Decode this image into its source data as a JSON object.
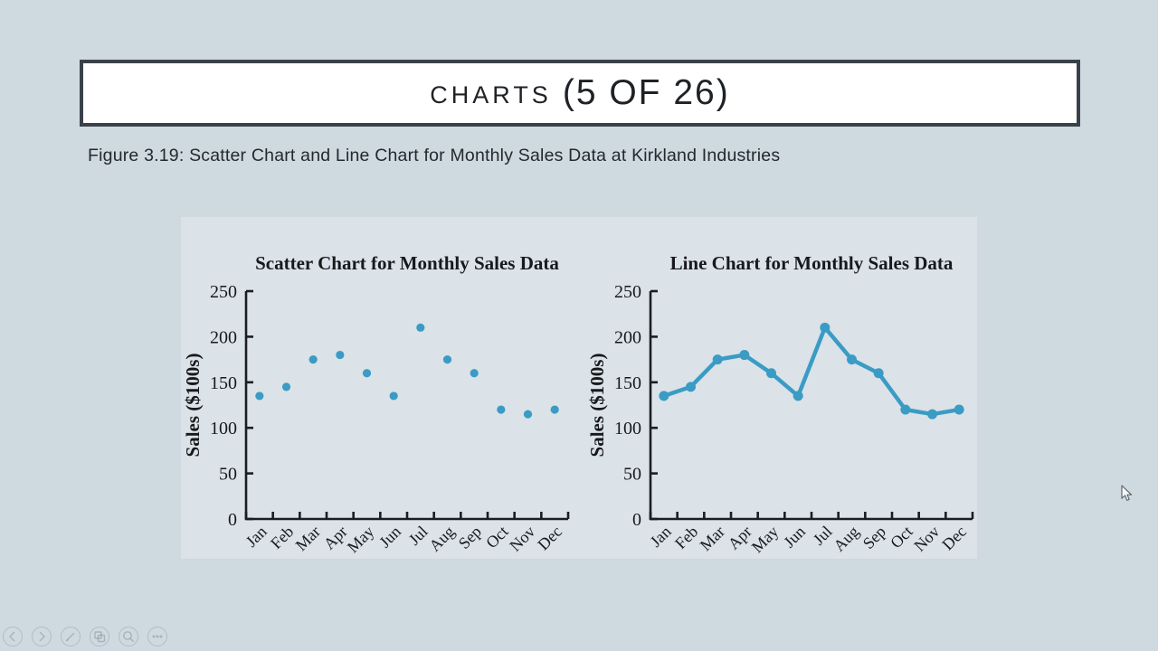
{
  "slide": {
    "title_caps": "CHARTS",
    "title_counter": "(5 OF 26)",
    "caption": "Figure 3.19: Scatter Chart and Line Chart for Monthly Sales Data at Kirkland Industries"
  },
  "colors": {
    "slide_bg": "#cfd9e0",
    "panel_bg": "#dbe2e8",
    "accent": "#3a9cc4",
    "frame": "#3a4149",
    "axis": "#1b1d20"
  },
  "toolbar": {
    "items": [
      {
        "name": "previous-slide",
        "icon": "chevron-left-icon"
      },
      {
        "name": "next-slide",
        "icon": "chevron-right-icon"
      },
      {
        "name": "pen-tools",
        "icon": "pen-icon"
      },
      {
        "name": "see-all-slides",
        "icon": "slides-grid-icon"
      },
      {
        "name": "zoom-into-slide",
        "icon": "magnifier-icon"
      },
      {
        "name": "more-options",
        "icon": "ellipsis-icon"
      }
    ]
  },
  "icons": {
    "mouse_pointer": "arrow-pointer-icon"
  },
  "chart_data": [
    {
      "type": "scatter",
      "title": "Scatter Chart for Monthly Sales Data",
      "ylabel": "Sales ($100s)",
      "xlabel": "",
      "categories": [
        "Jan",
        "Feb",
        "Mar",
        "Apr",
        "May",
        "Jun",
        "Jul",
        "Aug",
        "Sep",
        "Oct",
        "Nov",
        "Dec"
      ],
      "values": [
        135,
        145,
        175,
        180,
        160,
        135,
        210,
        175,
        160,
        120,
        115,
        120
      ],
      "ylim": [
        0,
        250
      ],
      "yticks": [
        0,
        50,
        100,
        150,
        200,
        250
      ],
      "grid": false,
      "legend": "none"
    },
    {
      "type": "line",
      "title": "Line Chart for Monthly Sales Data",
      "ylabel": "Sales ($100s)",
      "xlabel": "",
      "categories": [
        "Jan",
        "Feb",
        "Mar",
        "Apr",
        "May",
        "Jun",
        "Jul",
        "Aug",
        "Sep",
        "Oct",
        "Nov",
        "Dec"
      ],
      "values": [
        135,
        145,
        175,
        180,
        160,
        135,
        210,
        175,
        160,
        120,
        115,
        120
      ],
      "ylim": [
        0,
        250
      ],
      "yticks": [
        0,
        50,
        100,
        150,
        200,
        250
      ],
      "grid": false,
      "legend": "none"
    }
  ]
}
